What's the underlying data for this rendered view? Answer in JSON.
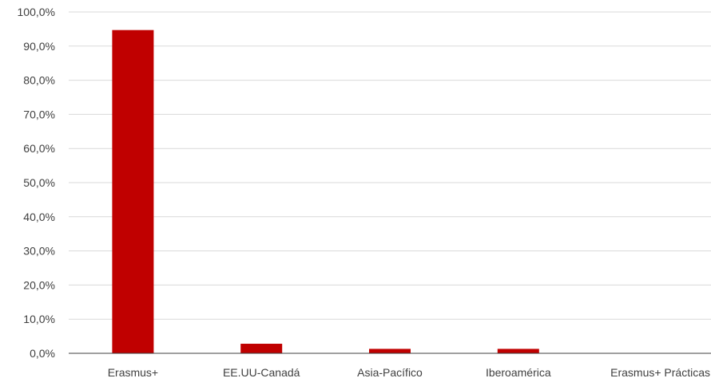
{
  "chart_data": {
    "type": "bar",
    "categories": [
      "Erasmus+",
      "EE.UU-Canadá",
      "Asia-Pacífico",
      "Iberoamérica",
      "Erasmus+ Prácticas"
    ],
    "values": [
      94.7,
      2.8,
      1.3,
      1.3,
      0.0
    ],
    "ylim": [
      0,
      100
    ],
    "y_ticks": [
      "0,0%",
      "10,0%",
      "20,0%",
      "30,0%",
      "40,0%",
      "50,0%",
      "60,0%",
      "70,0%",
      "80,0%",
      "90,0%",
      "100,0%"
    ],
    "grid": true,
    "bar_color": "#C00000",
    "grid_color": "#D9D9D9",
    "axis_color": "#404040"
  }
}
